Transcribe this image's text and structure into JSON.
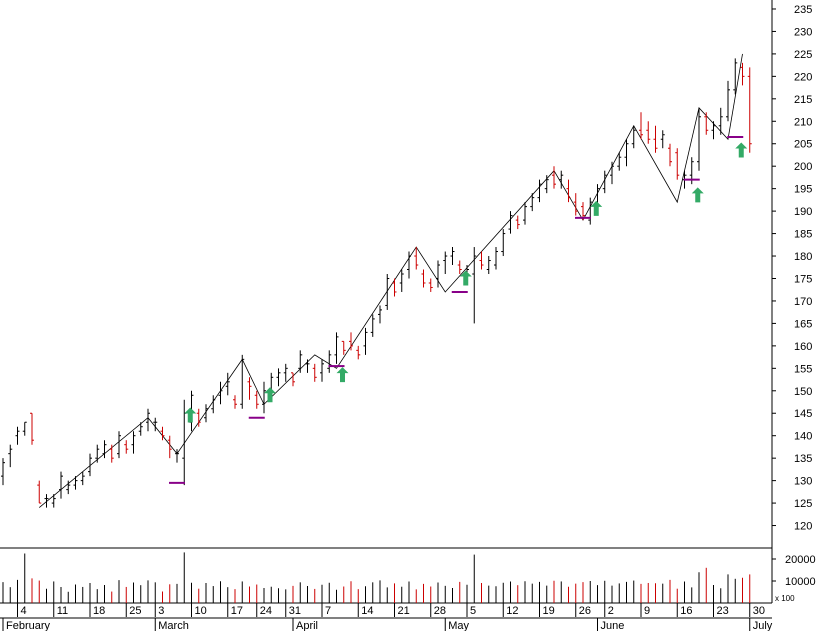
{
  "chart_data": [
    {
      "type": "ohlc",
      "title": "",
      "ylim": [
        115,
        237
      ],
      "y_ticks": [
        120,
        125,
        130,
        135,
        140,
        145,
        150,
        155,
        160,
        165,
        170,
        175,
        180,
        185,
        190,
        195,
        200,
        205,
        210,
        215,
        220,
        225,
        230,
        235
      ],
      "x_ticks": [
        {
          "idx": 2,
          "label": "4"
        },
        {
          "idx": 7,
          "label": "11"
        },
        {
          "idx": 12,
          "label": "18"
        },
        {
          "idx": 17,
          "label": "25"
        },
        {
          "idx": 21,
          "label": "3"
        },
        {
          "idx": 26,
          "label": "10"
        },
        {
          "idx": 31,
          "label": "17"
        },
        {
          "idx": 35,
          "label": "24"
        },
        {
          "idx": 39,
          "label": "31"
        },
        {
          "idx": 44,
          "label": "7"
        },
        {
          "idx": 49,
          "label": "14"
        },
        {
          "idx": 54,
          "label": "21"
        },
        {
          "idx": 59,
          "label": "28"
        },
        {
          "idx": 64,
          "label": "5"
        },
        {
          "idx": 69,
          "label": "12"
        },
        {
          "idx": 74,
          "label": "19"
        },
        {
          "idx": 79,
          "label": "26"
        },
        {
          "idx": 83,
          "label": "2"
        },
        {
          "idx": 88,
          "label": "9"
        },
        {
          "idx": 93,
          "label": "16"
        },
        {
          "idx": 98,
          "label": "23"
        },
        {
          "idx": 103,
          "label": "30"
        }
      ],
      "months": [
        {
          "idx": 0,
          "label": "February"
        },
        {
          "idx": 21,
          "label": "March"
        },
        {
          "idx": 40,
          "label": "April"
        },
        {
          "idx": 61,
          "label": "May"
        },
        {
          "idx": 82,
          "label": "June"
        },
        {
          "idx": 103,
          "label": "July"
        }
      ],
      "bars": [
        [
          135,
          131,
          129,
          134
        ],
        [
          138,
          136,
          133,
          137
        ],
        [
          142,
          140,
          138,
          141
        ],
        [
          143,
          141,
          140,
          143
        ],
        [
          145,
          145,
          138,
          139
        ],
        [
          130,
          129,
          125,
          125
        ],
        [
          127,
          126,
          124,
          126
        ],
        [
          127,
          125,
          124,
          126
        ],
        [
          132,
          128,
          126,
          131
        ],
        [
          130,
          128,
          127,
          129
        ],
        [
          131,
          129,
          128,
          130
        ],
        [
          132,
          130,
          129,
          131
        ],
        [
          136,
          132,
          131,
          135
        ],
        [
          138,
          135,
          134,
          137
        ],
        [
          139,
          136,
          135,
          138
        ],
        [
          138,
          137,
          134,
          135
        ],
        [
          141,
          136,
          135,
          140
        ],
        [
          139,
          138,
          136,
          137
        ],
        [
          141,
          138,
          136,
          140
        ],
        [
          143,
          141,
          140,
          142
        ],
        [
          146,
          143,
          141,
          145
        ],
        [
          144,
          143,
          141,
          143
        ],
        [
          142,
          141,
          139,
          140
        ],
        [
          140,
          139,
          135,
          137
        ],
        [
          137,
          136,
          134,
          136
        ],
        [
          148,
          135,
          129,
          145
        ],
        [
          150,
          143,
          141,
          149
        ],
        [
          146,
          145,
          142,
          143
        ],
        [
          147,
          144,
          143,
          146
        ],
        [
          149,
          146,
          145,
          148
        ],
        [
          152,
          149,
          147,
          150
        ],
        [
          154,
          151,
          149,
          152
        ],
        [
          149,
          148,
          146,
          147
        ],
        [
          158,
          147,
          146,
          157
        ],
        [
          153,
          152,
          148,
          151
        ],
        [
          150,
          149,
          146,
          147
        ],
        [
          152,
          147,
          145,
          150
        ],
        [
          154,
          150,
          148,
          153
        ],
        [
          155,
          153,
          151,
          154
        ],
        [
          156,
          154,
          152,
          155
        ],
        [
          154,
          154,
          151,
          152
        ],
        [
          159,
          155,
          154,
          158
        ],
        [
          157,
          156,
          154,
          156
        ],
        [
          156,
          155,
          152,
          153
        ],
        [
          157,
          154,
          152,
          156
        ],
        [
          159,
          155,
          154,
          158
        ],
        [
          163,
          158,
          156,
          162
        ],
        [
          161,
          161,
          158,
          159
        ],
        [
          163,
          161,
          159,
          160
        ],
        [
          160,
          159,
          157,
          158
        ],
        [
          164,
          160,
          158,
          163
        ],
        [
          167,
          163,
          162,
          166
        ],
        [
          169,
          167,
          165,
          168
        ],
        [
          176,
          169,
          168,
          175
        ],
        [
          175,
          174,
          171,
          172
        ],
        [
          177,
          174,
          172,
          176
        ],
        [
          181,
          177,
          175,
          180
        ],
        [
          182,
          180,
          177,
          178
        ],
        [
          177,
          176,
          173,
          174
        ],
        [
          175,
          174,
          172,
          173
        ],
        [
          179,
          175,
          173,
          178
        ],
        [
          181,
          179,
          176,
          180
        ],
        [
          182,
          180,
          178,
          181
        ],
        [
          179,
          178,
          176,
          177
        ],
        [
          178,
          176,
          174,
          177
        ],
        [
          182,
          176,
          165,
          180
        ],
        [
          181,
          179,
          177,
          178
        ],
        [
          180,
          177,
          176,
          179
        ],
        [
          182,
          178,
          177,
          181
        ],
        [
          186,
          181,
          180,
          185
        ],
        [
          190,
          186,
          185,
          189
        ],
        [
          189,
          188,
          186,
          187
        ],
        [
          192,
          188,
          187,
          191
        ],
        [
          194,
          191,
          190,
          193
        ],
        [
          197,
          193,
          192,
          196
        ],
        [
          198,
          195,
          194,
          197
        ],
        [
          200,
          198,
          195,
          196
        ],
        [
          199,
          197,
          195,
          198
        ],
        [
          197,
          195,
          192,
          193
        ],
        [
          194,
          192,
          189,
          190
        ],
        [
          192,
          191,
          188,
          189
        ],
        [
          193,
          188,
          187,
          192
        ],
        [
          196,
          192,
          190,
          195
        ],
        [
          199,
          195,
          194,
          198
        ],
        [
          201,
          198,
          196,
          200
        ],
        [
          203,
          200,
          199,
          202
        ],
        [
          206,
          202,
          200,
          205
        ],
        [
          209,
          205,
          204,
          208
        ],
        [
          212,
          208,
          206,
          207
        ],
        [
          210,
          208,
          205,
          206
        ],
        [
          209,
          206,
          203,
          204
        ],
        [
          208,
          206,
          204,
          207
        ],
        [
          205,
          204,
          200,
          201
        ],
        [
          204,
          203,
          197,
          198
        ],
        [
          199,
          197,
          195,
          198
        ],
        [
          202,
          198,
          196,
          201
        ],
        [
          213,
          201,
          199,
          211
        ],
        [
          212,
          211,
          207,
          208
        ],
        [
          210,
          208,
          206,
          209
        ],
        [
          213,
          209,
          207,
          211
        ],
        [
          219,
          211,
          210,
          217
        ],
        [
          224,
          217,
          216,
          223
        ],
        [
          223,
          222,
          218,
          220
        ],
        [
          222,
          220,
          203,
          205
        ]
      ],
      "volume": [
        9500,
        7200,
        10500,
        22500,
        11200,
        10200,
        6500,
        9800,
        7300,
        5100,
        8400,
        7300,
        9100,
        6300,
        8200,
        5200,
        10400,
        7300,
        9300,
        8100,
        10300,
        9400,
        5200,
        8500,
        8700,
        23000,
        9200,
        6500,
        9100,
        7700,
        9900,
        7200,
        6300,
        9800,
        7500,
        8400,
        6800,
        7400,
        6700,
        6200,
        7800,
        9400,
        7700,
        6400,
        8300,
        9200,
        6000,
        7500,
        9900,
        6300,
        7600,
        9400,
        10300,
        7100,
        8900,
        7400,
        9800,
        6200,
        8700,
        7500,
        9300,
        7800,
        6800,
        9600,
        8300,
        22000,
        9100,
        7900,
        7600,
        9200,
        9800,
        8100,
        9900,
        8800,
        9600,
        7900,
        10100,
        9800,
        7400,
        8800,
        9500,
        10000,
        8100,
        10100,
        7900,
        8900,
        9600,
        10200,
        8700,
        9100,
        9000,
        8800,
        10500,
        6500,
        9800,
        7100,
        14000,
        16000,
        8200,
        6700,
        13000,
        11000,
        11500,
        13000
      ],
      "vol_ticks": [
        10000,
        20000
      ],
      "vol_scale_label": "x 100",
      "vol_max": 25000,
      "zigzag": [
        [
          5,
          124
        ],
        [
          20,
          144
        ],
        [
          24,
          136
        ],
        [
          33,
          157
        ],
        [
          36,
          147
        ],
        [
          43,
          158
        ],
        [
          46,
          155
        ],
        [
          57,
          182
        ],
        [
          61,
          172
        ],
        [
          76,
          199
        ],
        [
          80,
          188
        ],
        [
          87,
          209
        ],
        [
          93,
          192
        ],
        [
          96,
          213
        ],
        [
          100,
          206
        ],
        [
          102,
          225
        ]
      ],
      "support_marks": [
        {
          "idx": 24,
          "price": 129.5
        },
        {
          "idx": 35,
          "price": 144
        },
        {
          "idx": 46,
          "price": 155.5
        },
        {
          "idx": 63,
          "price": 172
        },
        {
          "idx": 80,
          "price": 188.5
        },
        {
          "idx": 95,
          "price": 197
        },
        {
          "idx": 101,
          "price": 206.5
        }
      ],
      "buy_arrows": [
        {
          "idx": 25,
          "price": 144.5
        },
        {
          "idx": 36,
          "price": 149
        },
        {
          "idx": 46,
          "price": 153.5
        },
        {
          "idx": 63,
          "price": 175
        },
        {
          "idx": 81,
          "price": 190.5
        },
        {
          "idx": 95,
          "price": 193.5
        },
        {
          "idx": 101,
          "price": 203.5
        }
      ],
      "colors": {
        "up": "#000000",
        "down": "#cc0000",
        "support": "#880088",
        "arrow": "#33aa66",
        "axis": "#000000"
      }
    }
  ]
}
